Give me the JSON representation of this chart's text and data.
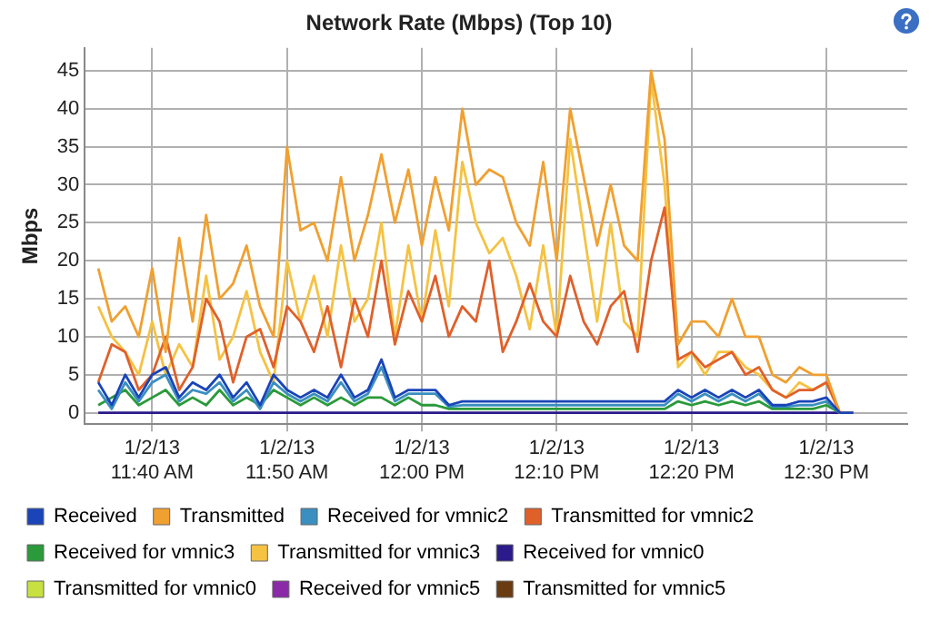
{
  "chart_data": {
    "type": "line",
    "title": "Network Rate (Mbps) (Top 10)",
    "ylabel": "Mbps",
    "x": [
      "--01-02T11:36",
      "--01-02T11:37",
      "--01-02T11:38",
      "--01-02T11:39",
      "--01-02T11:40",
      "--01-02T11:41",
      "--01-02T11:42",
      "--01-02T11:43",
      "--01-02T11:44",
      "--01-02T11:45",
      "--01-02T11:46",
      "--01-02T11:47",
      "--01-02T11:48",
      "--01-02T11:49",
      "--01-02T11:50",
      "--01-02T11:51",
      "--01-02T11:52",
      "--01-02T11:53",
      "--01-02T11:54",
      "--01-02T11:55",
      "--01-02T11:56",
      "--01-02T11:57",
      "--01-02T11:58",
      "--01-02T11:59",
      "--01-02T12:00",
      "--01-02T12:01",
      "--01-02T12:02",
      "--01-02T12:03",
      "--01-02T12:04",
      "--01-02T12:05",
      "--01-02T12:06",
      "--01-02T12:07",
      "--01-02T12:08",
      "--01-02T12:09",
      "--01-02T12:10",
      "--01-02T12:11",
      "--01-02T12:12",
      "--01-02T12:13",
      "--01-02T12:14",
      "--01-02T12:15",
      "--01-02T12:16",
      "--01-02T12:17",
      "--01-02T12:18",
      "--01-02T12:19",
      "--01-02T12:20",
      "--01-02T12:21",
      "--01-02T12:22",
      "--01-02T12:23",
      "--01-02T12:24",
      "--01-02T12:25",
      "--01-02T12:26",
      "--01-02T12:27",
      "--01-02T12:28",
      "--01-02T12:29",
      "--01-02T12:30",
      "--01-02T12:31",
      "--01-02T12:32"
    ],
    "xlim": [
      "--01-02T11:35",
      "--01-02T12:36"
    ],
    "xticks": [
      {
        "value": "--01-02T11:40",
        "label": "1/2/13\n11:40 AM"
      },
      {
        "value": "--01-02T11:50",
        "label": "1/2/13\n11:50 AM"
      },
      {
        "value": "--01-02T12:00",
        "label": "1/2/13\n12:00 PM"
      },
      {
        "value": "--01-02T12:10",
        "label": "1/2/13\n12:10 PM"
      },
      {
        "value": "--01-02T12:20",
        "label": "1/2/13\n12:20 PM"
      },
      {
        "value": "--01-02T12:30",
        "label": "1/2/13\n12:30 PM"
      }
    ],
    "ylim": [
      -1.5,
      48
    ],
    "yticks": [
      0,
      5,
      10,
      15,
      20,
      25,
      30,
      35,
      40,
      45
    ],
    "grid": true,
    "legend": "bottom",
    "marker": "none",
    "line_style": "solid",
    "series": [
      {
        "name": "Received",
        "color": "#1a44b8",
        "values": [
          4,
          1,
          5,
          2,
          5,
          6,
          2,
          4,
          3,
          5,
          2,
          4,
          1,
          5,
          3,
          2,
          3,
          2,
          5,
          2,
          3,
          7,
          2,
          3,
          3,
          3,
          1,
          1.5,
          1.5,
          1.5,
          1.5,
          1.5,
          1.5,
          1.5,
          1.5,
          1.5,
          1.5,
          1.5,
          1.5,
          1.5,
          1.5,
          1.5,
          1.5,
          3,
          2,
          3,
          2,
          3,
          2,
          3,
          1,
          1,
          1.5,
          1.5,
          2,
          0,
          0
        ]
      },
      {
        "name": "Transmitted",
        "color": "#f0a030",
        "values": [
          19,
          12,
          14,
          10,
          19,
          8,
          23,
          12,
          26,
          15,
          17,
          22,
          14,
          10,
          35,
          24,
          25,
          20,
          31,
          20,
          26,
          34,
          25,
          32,
          22,
          31,
          24,
          40,
          30,
          32,
          31,
          25,
          22,
          33,
          20,
          40,
          31,
          22,
          30,
          22,
          20,
          45,
          36,
          9,
          12,
          12,
          10,
          15,
          10,
          10,
          5,
          4,
          6,
          5,
          5,
          0,
          0
        ]
      },
      {
        "name": "Received for vmnic2",
        "color": "#3a8fc0",
        "values": [
          3,
          0.5,
          4,
          1.5,
          4,
          5,
          1.5,
          3,
          2.5,
          4,
          1.5,
          3,
          0.5,
          4,
          2.5,
          1.5,
          2.5,
          1.5,
          4,
          1.5,
          2.5,
          6,
          1.5,
          2.5,
          2.5,
          2.5,
          0.8,
          1,
          1,
          1,
          1,
          1,
          1,
          1,
          1,
          1,
          1,
          1,
          1,
          1,
          1,
          1,
          1,
          2.5,
          1.5,
          2.5,
          1.5,
          2.5,
          1.5,
          2.5,
          0.8,
          0.8,
          1,
          1,
          1.5,
          0,
          0
        ]
      },
      {
        "name": "Transmitted for vmnic2",
        "color": "#e0602a",
        "values": [
          4,
          9,
          8,
          3,
          5,
          10,
          3,
          6,
          15,
          12,
          4,
          10,
          11,
          6,
          14,
          12,
          8,
          14,
          6,
          15,
          10,
          20,
          9,
          16,
          12,
          18,
          10,
          14,
          12,
          20,
          8,
          12,
          17,
          12,
          10,
          18,
          12,
          9,
          14,
          16,
          8,
          20,
          27,
          7,
          8,
          6,
          7,
          8,
          5,
          6,
          3,
          2,
          3,
          3,
          4,
          0,
          0
        ]
      },
      {
        "name": "Received for vmnic3",
        "color": "#2a9a3a",
        "values": [
          1,
          2,
          3,
          1,
          2,
          3,
          1,
          2,
          1,
          3,
          1,
          2,
          1,
          3,
          2,
          1,
          2,
          1,
          2,
          1,
          2,
          2,
          1,
          2,
          1,
          1,
          0.5,
          0.5,
          0.5,
          0.5,
          0.5,
          0.5,
          0.5,
          0.5,
          0.5,
          0.5,
          0.5,
          0.5,
          0.5,
          0.5,
          0.5,
          0.5,
          0.5,
          1.5,
          1,
          1.5,
          1,
          1.5,
          1,
          1.5,
          0.5,
          0.5,
          0.5,
          0.5,
          1,
          0,
          0
        ]
      },
      {
        "name": "Transmitted for vmnic3",
        "color": "#f5c242",
        "values": [
          14,
          10,
          8,
          5,
          12,
          5,
          9,
          6,
          18,
          7,
          10,
          16,
          8,
          4,
          20,
          12,
          18,
          10,
          22,
          12,
          15,
          25,
          10,
          22,
          12,
          24,
          14,
          33,
          25,
          21,
          23,
          18,
          11,
          22,
          10,
          36,
          24,
          12,
          25,
          12,
          10,
          44,
          30,
          6,
          8,
          5,
          8,
          8,
          6,
          5,
          3,
          2,
          4,
          3,
          4,
          0,
          0
        ]
      },
      {
        "name": "Received for vmnic0",
        "color": "#2a1a8a",
        "values": [
          0,
          0,
          0,
          0,
          0,
          0,
          0,
          0,
          0,
          0,
          0,
          0,
          0,
          0,
          0,
          0,
          0,
          0,
          0,
          0,
          0,
          0,
          0,
          0,
          0,
          0,
          0,
          0,
          0,
          0,
          0,
          0,
          0,
          0,
          0,
          0,
          0,
          0,
          0,
          0,
          0,
          0,
          0,
          0,
          0,
          0,
          0,
          0,
          0,
          0,
          0,
          0,
          0,
          0,
          0,
          0,
          0
        ]
      },
      {
        "name": "Transmitted for vmnic0",
        "color": "#c8e040",
        "values": [
          null,
          null,
          null,
          null,
          null,
          null,
          null,
          null,
          null,
          null,
          null,
          null,
          null,
          null,
          null,
          null,
          null,
          null,
          null,
          null,
          null,
          null,
          null,
          null,
          null,
          null,
          null,
          null,
          null,
          null,
          null,
          null,
          null,
          null,
          null,
          null,
          null,
          null,
          null,
          null,
          null,
          null,
          null,
          null,
          null,
          null,
          null,
          null,
          null,
          null,
          null,
          null,
          null,
          null,
          null,
          null,
          null
        ]
      },
      {
        "name": "Received for vmnic5",
        "color": "#8a2aa8",
        "values": [
          null,
          null,
          null,
          null,
          null,
          null,
          null,
          null,
          null,
          null,
          null,
          null,
          null,
          null,
          null,
          null,
          null,
          null,
          null,
          null,
          null,
          null,
          null,
          null,
          null,
          null,
          null,
          null,
          null,
          null,
          null,
          null,
          null,
          null,
          null,
          null,
          null,
          null,
          null,
          null,
          null,
          null,
          null,
          null,
          null,
          null,
          null,
          null,
          null,
          null,
          null,
          null,
          null,
          null,
          null,
          null,
          null
        ]
      },
      {
        "name": "Transmitted for vmnic5",
        "color": "#6a3a10",
        "values": [
          null,
          null,
          null,
          null,
          null,
          null,
          null,
          null,
          null,
          null,
          null,
          null,
          null,
          null,
          null,
          null,
          null,
          null,
          null,
          null,
          null,
          null,
          null,
          null,
          null,
          null,
          null,
          null,
          null,
          null,
          null,
          null,
          null,
          null,
          null,
          null,
          null,
          null,
          null,
          null,
          null,
          null,
          null,
          null,
          null,
          null,
          null,
          null,
          null,
          null,
          null,
          null,
          null,
          null,
          null,
          null,
          null
        ]
      }
    ]
  }
}
